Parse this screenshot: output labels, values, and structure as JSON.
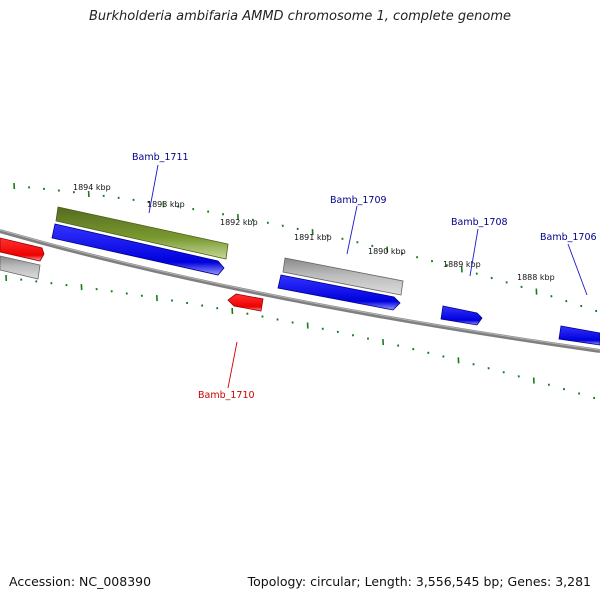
{
  "title": "Burkholderia ambifaria AMMD chromosome 1, complete genome",
  "footer": {
    "accession": "Accession: NC_008390",
    "summary": "Topology: circular; Length: 3,556,545 bp; Genes: 3,281"
  },
  "colors": {
    "backbone": "#808080",
    "ticks": "#1a7a1a",
    "gene_forward_label": "#00008b",
    "gene_reverse_label": "#cc0000"
  },
  "ticks": [
    {
      "label": "1894 kbp"
    },
    {
      "label": "1893 kbp"
    },
    {
      "label": "1892 kbp"
    },
    {
      "label": "1891 kbp"
    },
    {
      "label": "1890 kbp"
    },
    {
      "label": "1889 kbp"
    },
    {
      "label": "1888 kbp"
    }
  ],
  "genes": [
    {
      "name": "Bamb_1711",
      "strand": "forward"
    },
    {
      "name": "Bamb_1710",
      "strand": "reverse"
    },
    {
      "name": "Bamb_1709",
      "strand": "forward"
    },
    {
      "name": "Bamb_1708",
      "strand": "forward"
    },
    {
      "name": "Bamb_1706",
      "strand": "forward"
    }
  ]
}
